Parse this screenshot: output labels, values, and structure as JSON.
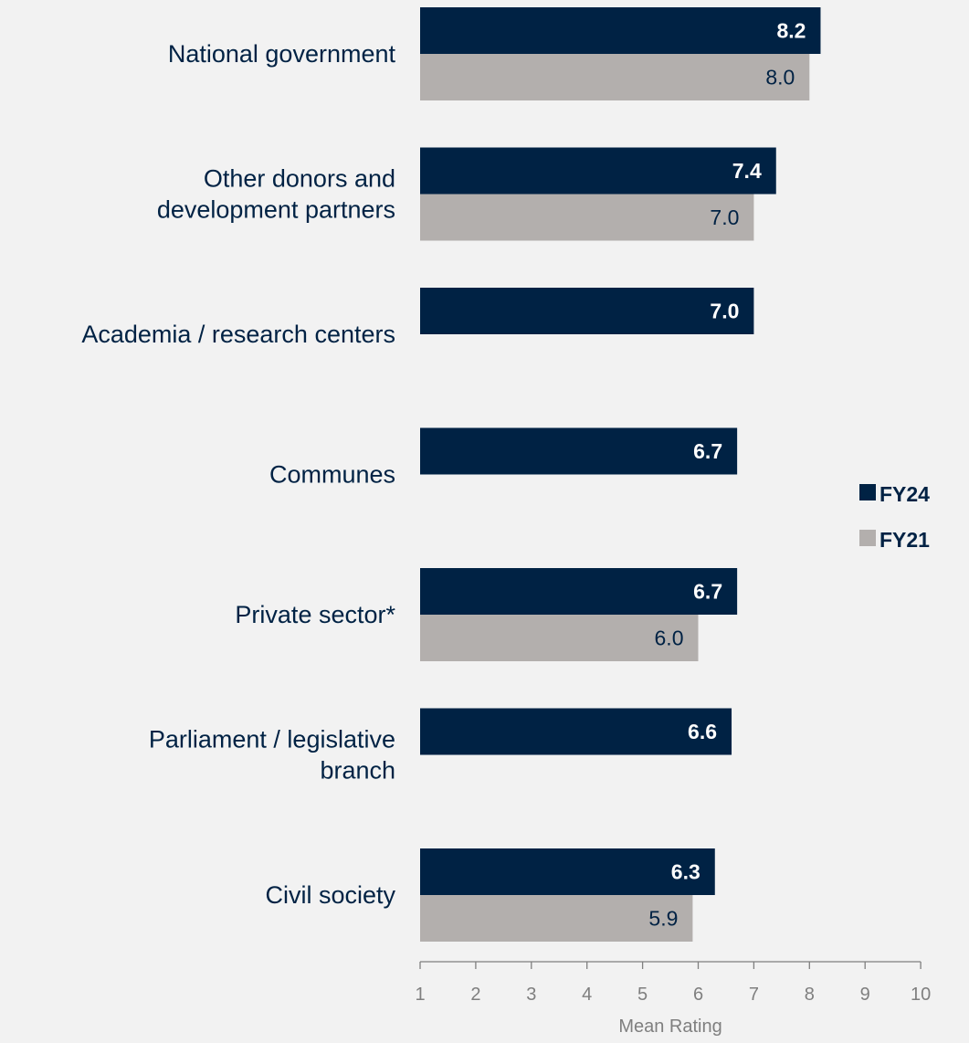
{
  "chart_data": {
    "type": "bar",
    "orientation": "horizontal",
    "categories": [
      [
        "National government"
      ],
      [
        "Other donors and",
        "development partners"
      ],
      [
        "Academia / research centers"
      ],
      [
        "Communes"
      ],
      [
        "Private sector*"
      ],
      [
        "Parliament / legislative",
        "branch"
      ],
      [
        "Civil society"
      ]
    ],
    "series": [
      {
        "name": "FY24",
        "color": "#002244",
        "label_color": "#ffffff",
        "label_bold": true,
        "values": [
          8.2,
          7.4,
          7.0,
          6.7,
          6.7,
          6.6,
          6.3
        ]
      },
      {
        "name": "FY21",
        "color": "#b3afad",
        "label_color": "#002244",
        "label_bold": false,
        "values": [
          8.0,
          7.0,
          null,
          null,
          6.0,
          null,
          5.9
        ]
      }
    ],
    "xlabel": "Mean Rating",
    "xlim": [
      1,
      10
    ],
    "xticks": [
      1,
      2,
      3,
      4,
      5,
      6,
      7,
      8,
      9,
      10
    ],
    "category_label_color": "#002244",
    "axis_color": "#7f7f7f",
    "legend_position": "right",
    "grid": false
  }
}
